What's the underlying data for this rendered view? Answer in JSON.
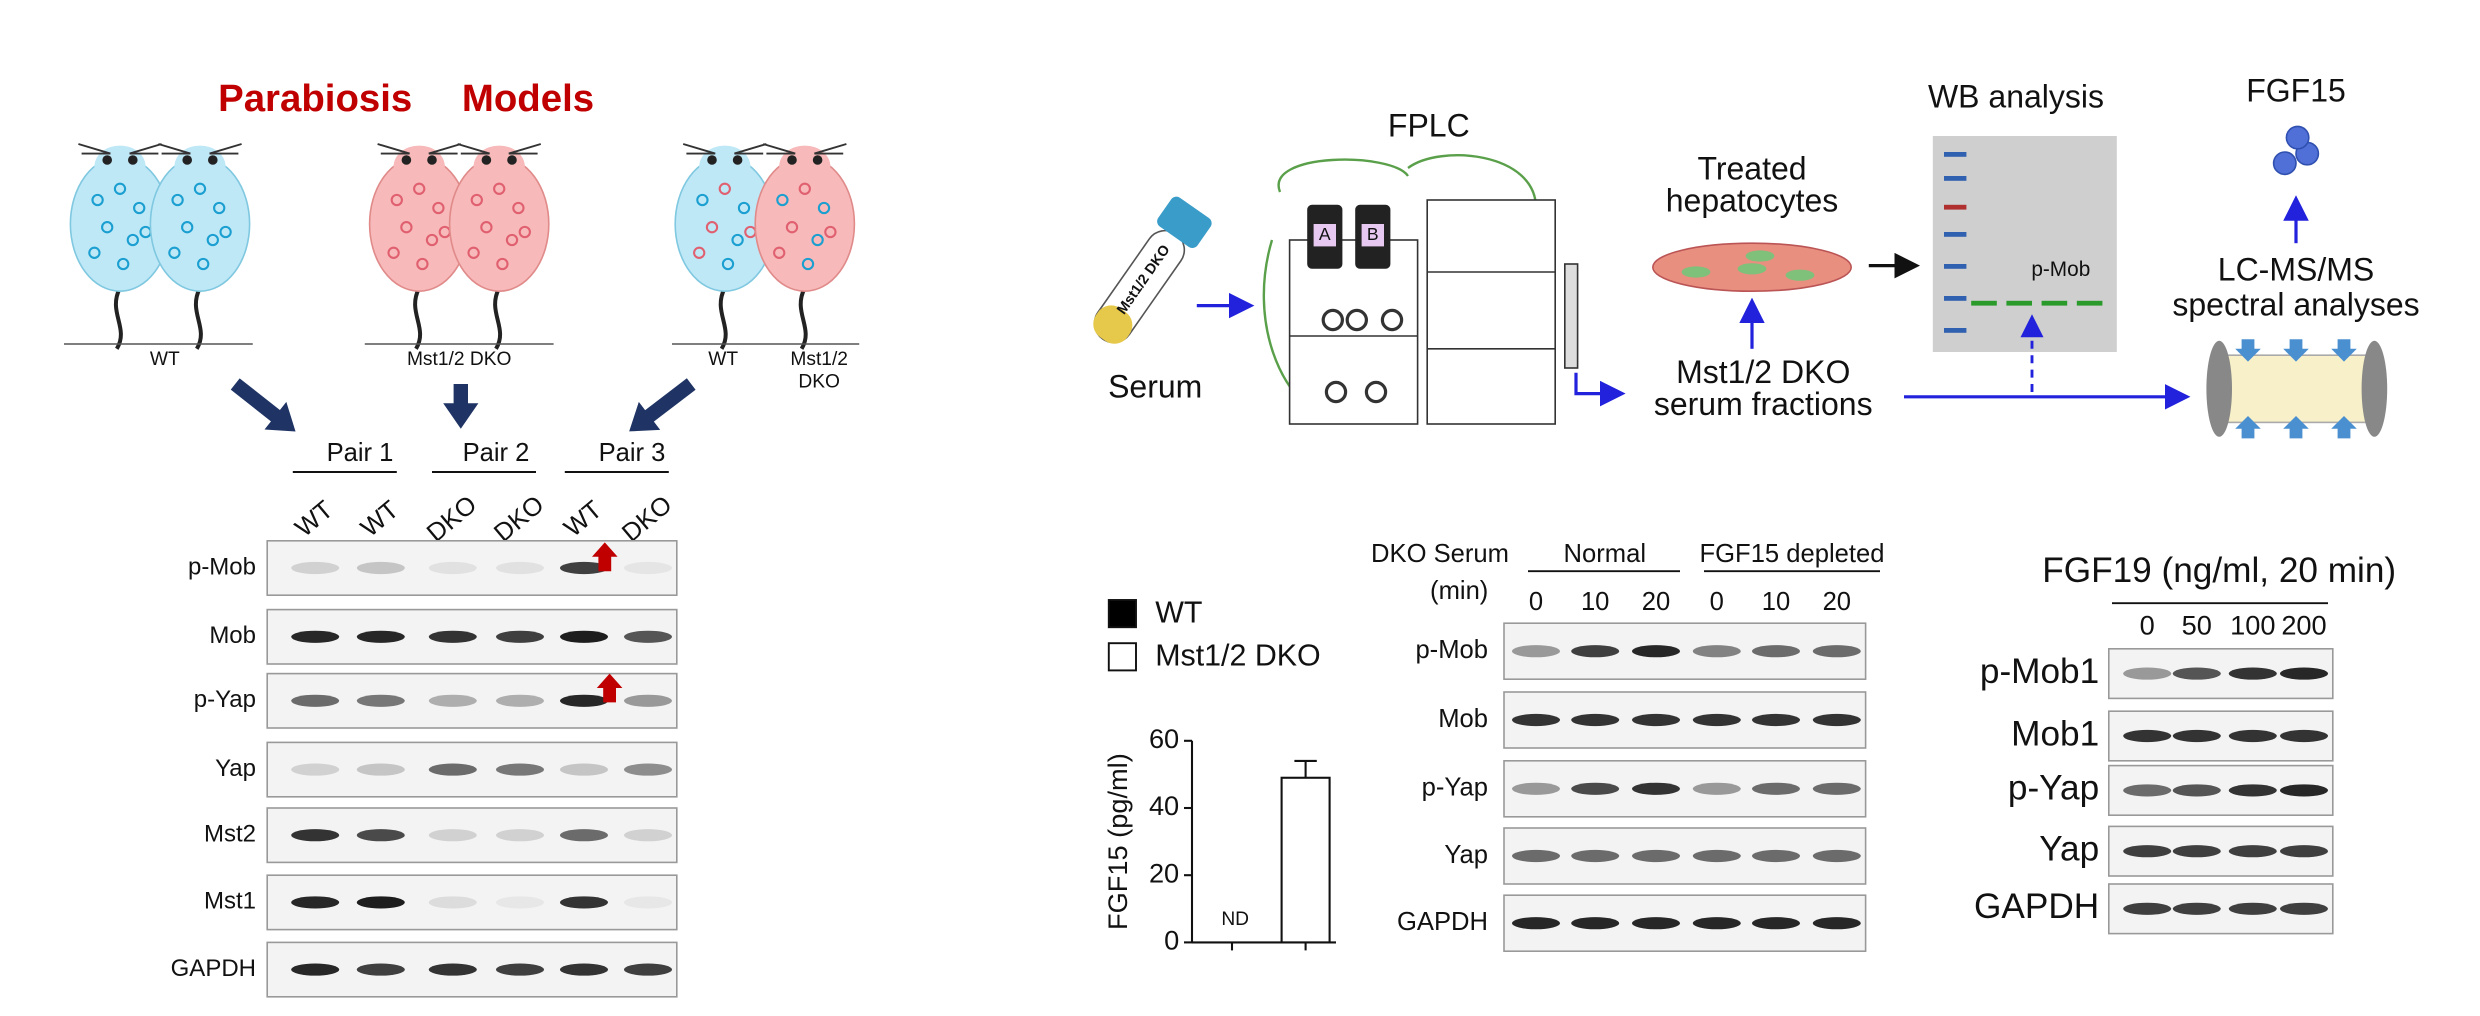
{
  "parabiosis": {
    "title": [
      "Parabiosis",
      "Models"
    ],
    "mouse_labels": [
      "WT",
      "Mst1/2 DKO",
      "WT",
      "Mst1/2",
      "DKO"
    ]
  },
  "blot_a": {
    "pairs": [
      "Pair 1",
      "Pair 2",
      "Pair 3"
    ],
    "lanes": [
      "WT",
      "WT",
      "DKO",
      "DKO",
      "WT",
      "DKO"
    ],
    "rows": [
      "p-Mob",
      "Mob",
      "p-Yap",
      "Yap",
      "Mst2",
      "Mst1",
      "GAPDH"
    ]
  },
  "workflow": {
    "serum": "Serum",
    "tube_label": "Mst1/2 DKO",
    "fplc": "FPLC",
    "bottles": [
      "A",
      "B"
    ],
    "treated": [
      "Treated",
      "hepatocytes"
    ],
    "fractions": [
      "Mst1/2 DKO",
      "serum fractions"
    ],
    "wb": "WB analysis",
    "band": "p-Mob",
    "lcms": [
      "LC-MS/MS",
      "spectral analyses"
    ],
    "product": "FGF15"
  },
  "chart_data": {
    "type": "bar",
    "ylabel": "FGF15 (pg/ml)",
    "series": [
      {
        "name": "WT",
        "color": "#000000",
        "values": [
          null
        ],
        "value_labels": [
          "ND"
        ]
      },
      {
        "name": "Mst1/2 DKO",
        "color": "#ffffff",
        "values": [
          49
        ],
        "errors": [
          5
        ]
      }
    ],
    "ylim": [
      0,
      60
    ],
    "yticks": [
      0,
      20,
      40,
      60
    ]
  },
  "blot_b": {
    "treatment": "DKO Serum",
    "unit": "(min)",
    "groups": [
      "Normal",
      "FGF15 depleted"
    ],
    "lanes": [
      "0",
      "10",
      "20",
      "0",
      "10",
      "20"
    ],
    "rows": [
      "p-Mob",
      "Mob",
      "p-Yap",
      "Yap",
      "GAPDH"
    ]
  },
  "blot_c": {
    "title": "FGF19 (ng/ml, 20 min)",
    "lanes": [
      "0",
      "50",
      "100",
      "200"
    ],
    "rows": [
      "p-Mob1",
      "Mob1",
      "p-Yap",
      "Yap",
      "GAPDH"
    ]
  }
}
